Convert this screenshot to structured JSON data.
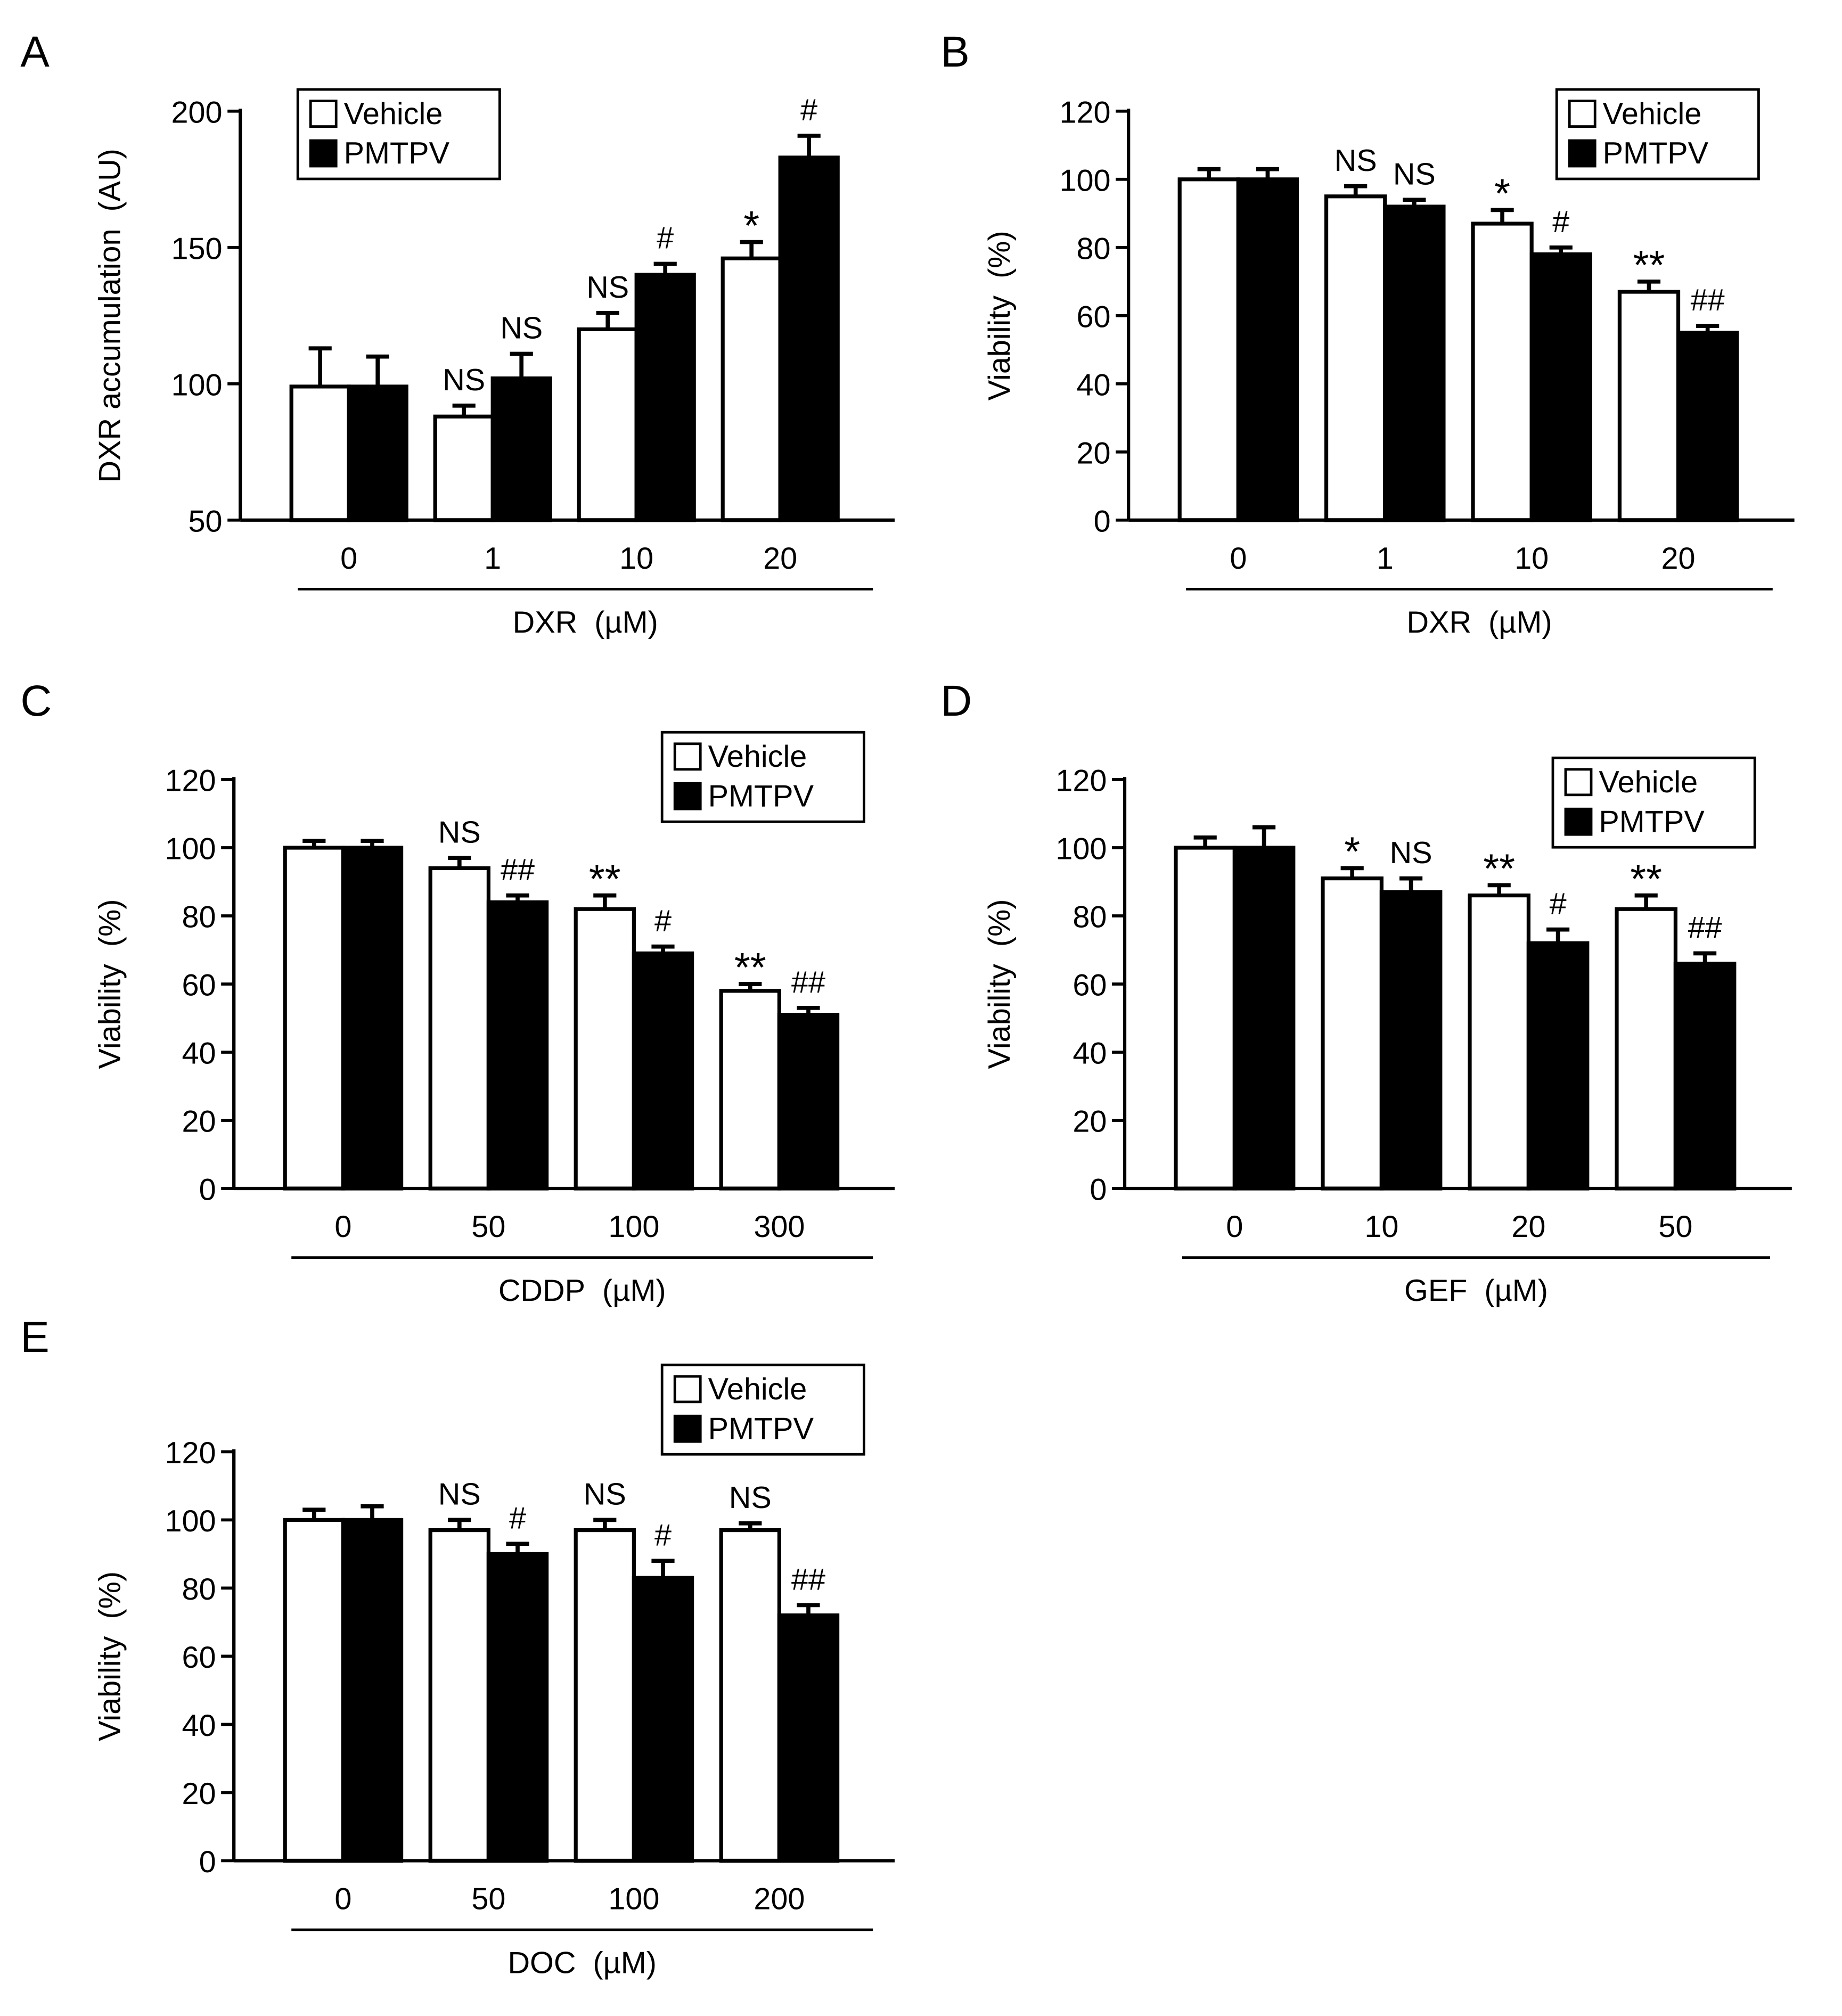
{
  "figure": {
    "legend_labels": [
      "Vehicle",
      "PMTPV"
    ],
    "colors": {
      "vehicle_fill": "#ffffff",
      "pmtpv_fill": "#000000",
      "stroke": "#000000"
    }
  },
  "chart_data": [
    {
      "panel": "A",
      "type": "bar",
      "ylabel": "DXR accumulation  (AU)",
      "xlabel": "DXR  (µM)",
      "categories": [
        "0",
        "1",
        "10",
        "20"
      ],
      "ylim": [
        50,
        200
      ],
      "yticks": [
        "50",
        "100",
        "150",
        "200"
      ],
      "legend_position": "top-left",
      "series": [
        {
          "name": "Vehicle",
          "values": [
            99,
            88,
            120,
            146
          ],
          "errors": [
            14,
            4,
            6,
            6
          ],
          "annotations": [
            "",
            "NS",
            "NS",
            "*"
          ]
        },
        {
          "name": "PMTPV",
          "values": [
            99,
            102,
            140,
            183
          ],
          "errors": [
            11,
            9,
            4,
            8
          ],
          "annotations": [
            "",
            "NS",
            "#",
            "#"
          ]
        }
      ]
    },
    {
      "panel": "B",
      "type": "bar",
      "ylabel": "Viability  (%)",
      "xlabel": "DXR  (µM)",
      "categories": [
        "0",
        "1",
        "10",
        "20"
      ],
      "ylim": [
        0,
        120
      ],
      "yticks": [
        "0",
        "20",
        "40",
        "60",
        "80",
        "100",
        "120"
      ],
      "legend_position": "top-right",
      "series": [
        {
          "name": "Vehicle",
          "values": [
            100,
            95,
            87,
            67
          ],
          "errors": [
            3,
            3,
            4,
            3
          ],
          "annotations": [
            "",
            "NS",
            "*",
            "**"
          ]
        },
        {
          "name": "PMTPV",
          "values": [
            100,
            92,
            78,
            55
          ],
          "errors": [
            3,
            2,
            2,
            2
          ],
          "annotations": [
            "",
            "NS",
            "#",
            "##"
          ]
        }
      ]
    },
    {
      "panel": "C",
      "type": "bar",
      "ylabel": "Viability  (%)",
      "xlabel": "CDDP  (µM)",
      "categories": [
        "0",
        "50",
        "100",
        "300"
      ],
      "ylim": [
        0,
        120
      ],
      "yticks": [
        "0",
        "20",
        "40",
        "60",
        "80",
        "100",
        "120"
      ],
      "legend_position": "top-right",
      "series": [
        {
          "name": "Vehicle",
          "values": [
            100,
            94,
            82,
            58
          ],
          "errors": [
            2,
            3,
            4,
            2
          ],
          "annotations": [
            "",
            "NS",
            "**",
            "**"
          ]
        },
        {
          "name": "PMTPV",
          "values": [
            100,
            84,
            69,
            51
          ],
          "errors": [
            2,
            2,
            2,
            2
          ],
          "annotations": [
            "",
            "##",
            "#",
            "##"
          ]
        }
      ]
    },
    {
      "panel": "D",
      "type": "bar",
      "ylabel": "Viability  (%)",
      "xlabel": "GEF  (µM)",
      "categories": [
        "0",
        "10",
        "20",
        "50"
      ],
      "ylim": [
        0,
        120
      ],
      "yticks": [
        "0",
        "20",
        "40",
        "60",
        "80",
        "100",
        "120"
      ],
      "legend_position": "top-right",
      "series": [
        {
          "name": "Vehicle",
          "values": [
            100,
            91,
            86,
            82
          ],
          "errors": [
            3,
            3,
            3,
            4
          ],
          "annotations": [
            "",
            "*",
            "**",
            "**"
          ]
        },
        {
          "name": "PMTPV",
          "values": [
            100,
            87,
            72,
            66
          ],
          "errors": [
            6,
            4,
            4,
            3
          ],
          "annotations": [
            "",
            "NS",
            "#",
            "##"
          ]
        }
      ]
    },
    {
      "panel": "E",
      "type": "bar",
      "ylabel": "Viability  (%)",
      "xlabel": "DOC  (µM)",
      "categories": [
        "0",
        "50",
        "100",
        "200"
      ],
      "ylim": [
        0,
        120
      ],
      "yticks": [
        "0",
        "20",
        "40",
        "60",
        "80",
        "100",
        "120"
      ],
      "legend_position": "top-right",
      "series": [
        {
          "name": "Vehicle",
          "values": [
            100,
            97,
            97,
            97
          ],
          "errors": [
            3,
            3,
            3,
            2
          ],
          "annotations": [
            "",
            "NS",
            "NS",
            "NS"
          ]
        },
        {
          "name": "PMTPV",
          "values": [
            100,
            90,
            83,
            72
          ],
          "errors": [
            4,
            3,
            5,
            3
          ],
          "annotations": [
            "",
            "#",
            "#",
            "##"
          ]
        }
      ]
    }
  ]
}
